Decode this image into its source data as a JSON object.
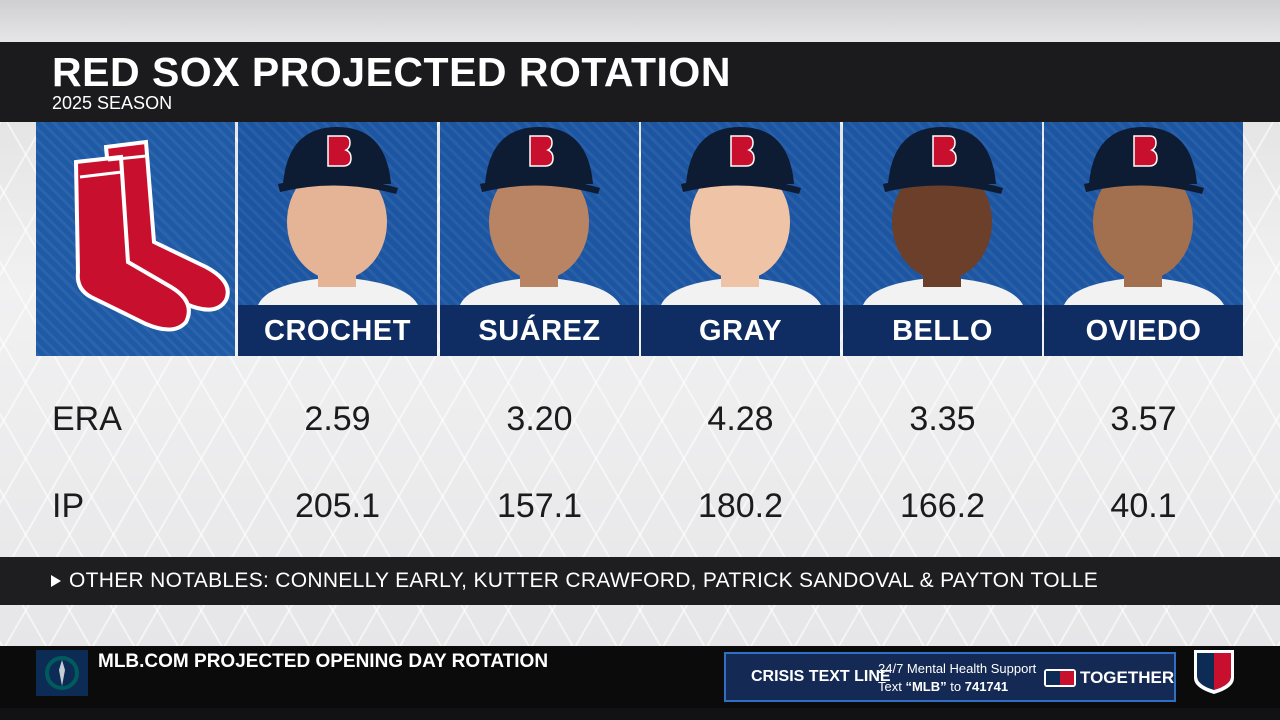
{
  "header": {
    "title": "RED SOX PROJECTED ROTATION",
    "subtitle": "2025 SEASON"
  },
  "players": [
    "CROCHET",
    "SUÁREZ",
    "GRAY",
    "BELLO",
    "OVIEDO"
  ],
  "stats": [
    {
      "label": "ERA",
      "values": [
        "2.59",
        "3.20",
        "4.28",
        "3.35",
        "3.57"
      ]
    },
    {
      "label": "IP",
      "values": [
        "205.1",
        "157.1",
        "180.2",
        "166.2",
        "40.1"
      ]
    }
  ],
  "notables": "OTHER NOTABLES: CONNELLY EARLY, KUTTER CRAWFORD, PATRICK SANDOVAL & PAYTON TOLLE",
  "ticker": {
    "headline": "MLB.COM PROJECTED OPENING DAY ROTATION",
    "crisis_title": "CRISIS TEXT LINE",
    "crisis_line1": "24/7 Mental Health Support",
    "crisis_text": "Text",
    "crisis_keyword": "“MLB”",
    "crisis_to": "to",
    "crisis_number": "741741",
    "together": "TOGETHER"
  }
}
